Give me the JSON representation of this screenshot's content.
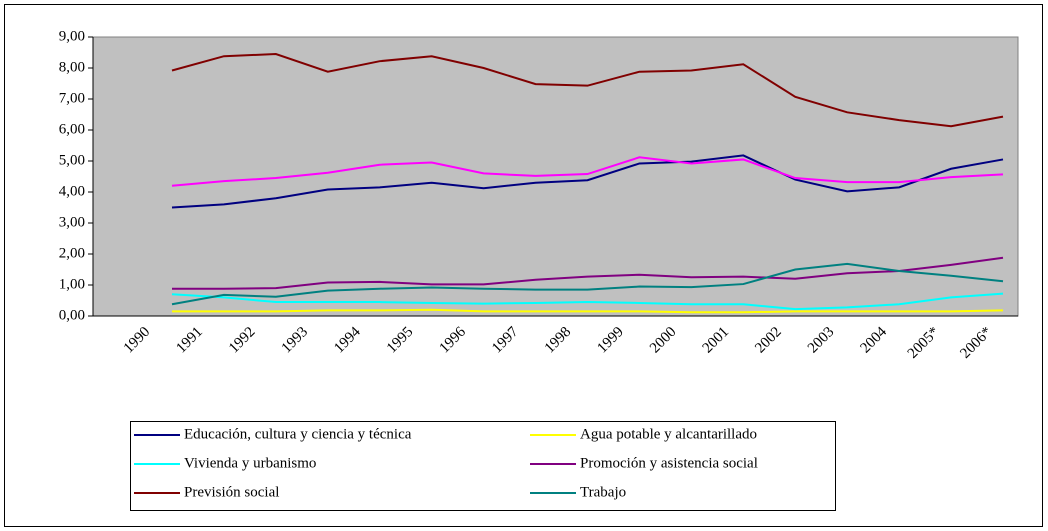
{
  "chart_data": {
    "type": "line",
    "categories": [
      "1990",
      "1991",
      "1992",
      "1993",
      "1994",
      "1995",
      "1996",
      "1997",
      "1998",
      "1999",
      "2000",
      "2001",
      "2002",
      "2003",
      "2004",
      "2005*",
      "2006*"
    ],
    "ylim": [
      0,
      9
    ],
    "yticks": [
      {
        "value": 0,
        "label": "0,00"
      },
      {
        "value": 1,
        "label": "1,00"
      },
      {
        "value": 2,
        "label": "2,00"
      },
      {
        "value": 3,
        "label": "3,00"
      },
      {
        "value": 4,
        "label": "4,00"
      },
      {
        "value": 5,
        "label": "5,00"
      },
      {
        "value": 6,
        "label": "6,00"
      },
      {
        "value": 7,
        "label": "7,00"
      },
      {
        "value": 8,
        "label": "8,00"
      },
      {
        "value": 9,
        "label": "9,00"
      }
    ],
    "grid": false,
    "series": [
      {
        "name": "Educación, cultura y ciencia y técnica",
        "color": "#000080",
        "values": [
          3.5,
          3.6,
          3.8,
          4.08,
          4.15,
          4.3,
          4.12,
          4.3,
          4.38,
          4.92,
          4.98,
          5.18,
          4.4,
          4.02,
          4.15,
          4.75,
          5.05
        ]
      },
      {
        "name": "Agua potable y alcantarillado",
        "color": "#ffff00",
        "values": [
          0.15,
          0.15,
          0.15,
          0.18,
          0.18,
          0.2,
          0.15,
          0.15,
          0.15,
          0.15,
          0.12,
          0.12,
          0.15,
          0.15,
          0.15,
          0.15,
          0.18
        ]
      },
      {
        "name": "Vivienda y urbanismo",
        "color": "#00ffff",
        "values": [
          0.7,
          0.6,
          0.45,
          0.45,
          0.45,
          0.42,
          0.4,
          0.42,
          0.45,
          0.42,
          0.38,
          0.38,
          0.22,
          0.28,
          0.38,
          0.6,
          0.72
        ]
      },
      {
        "name": "Promoción y asistencia social",
        "color": "#800080",
        "values": [
          0.88,
          0.88,
          0.9,
          1.08,
          1.1,
          1.02,
          1.02,
          1.17,
          1.27,
          1.33,
          1.25,
          1.27,
          1.2,
          1.38,
          1.45,
          1.65,
          1.88
        ]
      },
      {
        "name": "Previsión social",
        "color": "#800000",
        "values": [
          7.92,
          8.38,
          8.45,
          7.88,
          8.22,
          8.38,
          8.0,
          7.48,
          7.43,
          7.88,
          7.92,
          8.12,
          7.07,
          6.57,
          6.32,
          6.12,
          6.43
        ]
      },
      {
        "name": "Trabajo",
        "color": "#008080",
        "values": [
          0.38,
          0.68,
          0.62,
          0.82,
          0.88,
          0.92,
          0.88,
          0.85,
          0.85,
          0.95,
          0.93,
          1.03,
          1.5,
          1.68,
          1.45,
          1.3,
          1.12
        ]
      },
      {
        "color": "#ff00ff",
        "values": [
          4.2,
          4.35,
          4.45,
          4.62,
          4.88,
          4.95,
          4.6,
          4.52,
          4.58,
          5.12,
          4.92,
          5.05,
          4.45,
          4.32,
          4.32,
          4.48,
          4.57
        ]
      }
    ]
  }
}
